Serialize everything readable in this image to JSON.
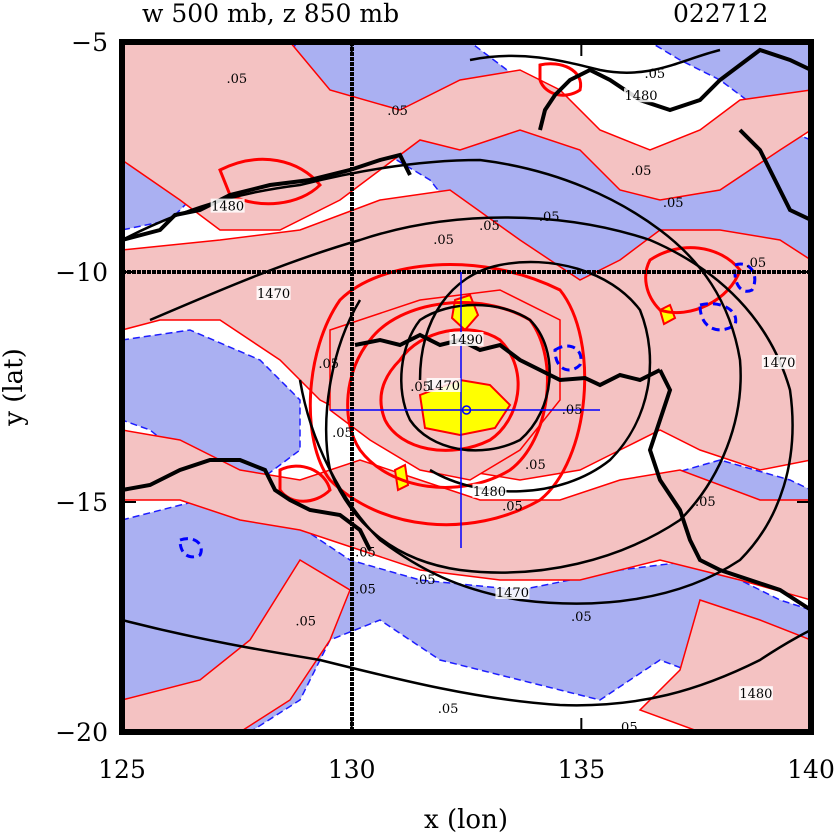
{
  "chart_data": {
    "type": "heatmap",
    "title_left": "w 500 mb, z 850 mb",
    "title_right": "022712",
    "xlabel": "x (lon)",
    "ylabel": "y (lat)",
    "xlim": [
      125,
      140
    ],
    "ylim": [
      -20,
      -5
    ],
    "xticks": [
      "125",
      "130",
      "135",
      "140"
    ],
    "yticks": [
      "−5",
      "−10",
      "−15",
      "−20"
    ],
    "xtick_values": [
      125,
      130,
      135,
      140
    ],
    "ytick_values": [
      -5,
      -10,
      -15,
      -20
    ],
    "shading": {
      "positive_color": "#f4c2c2",
      "negative_color": "#aab0f2",
      "strong_positive_color": "#ffff00",
      "positive_contour_color": "#ff0000",
      "negative_contour_color": "#0000ff"
    },
    "height_contours": [
      {
        "level": "1470",
        "label_points": [
          [
            128.3,
            -10.5
          ],
          [
            132.0,
            -12.5
          ],
          [
            133.5,
            -17.0
          ],
          [
            139.3,
            -12.0
          ]
        ]
      },
      {
        "level": "1480",
        "label_points": [
          [
            127.3,
            -8.6
          ],
          [
            133.0,
            -14.8
          ],
          [
            136.3,
            -6.2
          ],
          [
            138.8,
            -19.2
          ]
        ]
      },
      {
        "level": "1490",
        "label_points": [
          [
            132.5,
            -11.5
          ]
        ]
      }
    ],
    "omega_contour_labels": [
      {
        "text": ".05",
        "at": [
          127.5,
          -5.8
        ]
      },
      {
        "text": ".05",
        "at": [
          136.6,
          -5.7
        ]
      },
      {
        "text": ".05",
        "at": [
          131.0,
          -6.5
        ]
      },
      {
        "text": ".05",
        "at": [
          136.3,
          -7.8
        ]
      },
      {
        "text": ".05",
        "at": [
          134.3,
          -8.8
        ]
      },
      {
        "text": ".05",
        "at": [
          137.0,
          -8.5
        ]
      },
      {
        "text": ".05",
        "at": [
          133.0,
          -9.0
        ]
      },
      {
        "text": ".05",
        "at": [
          132.0,
          -9.3
        ]
      },
      {
        "text": ".05",
        "at": [
          138.8,
          -9.8
        ]
      },
      {
        "text": ".05",
        "at": [
          129.5,
          -12.0
        ]
      },
      {
        "text": ".05",
        "at": [
          131.5,
          -12.5
        ]
      },
      {
        "text": ".05",
        "at": [
          129.8,
          -13.5
        ]
      },
      {
        "text": ".05",
        "at": [
          134.8,
          -13.0
        ]
      },
      {
        "text": ".05",
        "at": [
          134.0,
          -14.2
        ]
      },
      {
        "text": ".05",
        "at": [
          133.5,
          -15.1
        ]
      },
      {
        "text": ".05",
        "at": [
          137.7,
          -15.0
        ]
      },
      {
        "text": ".05",
        "at": [
          130.3,
          -16.1
        ]
      },
      {
        "text": ".05",
        "at": [
          130.3,
          -16.9
        ]
      },
      {
        "text": ".05",
        "at": [
          131.6,
          -16.7
        ]
      },
      {
        "text": ".05",
        "at": [
          135.0,
          -17.5
        ]
      },
      {
        "text": ".05",
        "at": [
          129.0,
          -17.6
        ]
      },
      {
        "text": ".05",
        "at": [
          132.1,
          -19.5
        ]
      },
      {
        "text": ".05",
        "at": [
          136.0,
          -19.9
        ]
      }
    ],
    "reference_lines": {
      "lon": 130,
      "lat": -10
    },
    "storm_center": {
      "lon": 132.5,
      "lat": -13.0
    }
  }
}
